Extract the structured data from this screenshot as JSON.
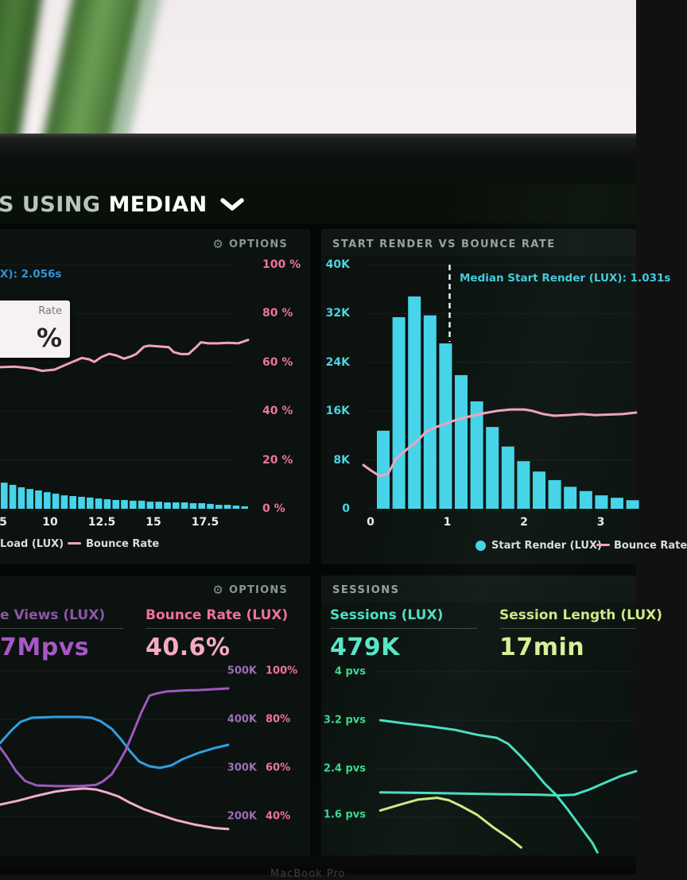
{
  "window": {
    "title_partial": "S USING",
    "title_emphasis": "MEDIAN",
    "bezel_text": "MacBook Pro"
  },
  "colors": {
    "bar_cyan": "#45d4e9",
    "pink_line": "#f2a2bd",
    "pink_axis": "#f0729c",
    "blue_readout": "#2f93d8",
    "cyan_axis": "#4ed2e2",
    "cyan_annotation": "#41cbdd",
    "purple_label": "#8d56a8",
    "purple_value": "#a857c8",
    "purple_axis": "#9c6cb4",
    "pink_metric_label": "#ef6f9f",
    "pink_metric_value": "#f5abc4",
    "teal_label": "#4ce0c0",
    "teal_value": "#57e6c8",
    "yellowgreen_label": "#cdea84",
    "yellowgreen_value": "#d9f097",
    "green_axis": "#3bd88e",
    "blue_line": "#2f9fe6",
    "purple_line": "#9c59bd",
    "pink_soft_line": "#f3aec6",
    "teal_line": "#49dfc0",
    "yellow_line": "#cdeb84",
    "header_gray": "#97a29d",
    "options_gray": "#8b9691",
    "title_gray": "#b9c4bd",
    "white": "#ffffff"
  },
  "panels": {
    "load": {
      "options_label": "OPTIONS",
      "hover_readout_partial": "X): 2.056s",
      "tooltip": {
        "label_partial": "Rate",
        "value_partial": "%"
      },
      "y_axis_labels": [
        "100 %",
        "80 %",
        "60 %",
        "40 %",
        "20 %",
        "0 %"
      ],
      "x_axis_labels": [
        "5",
        "10",
        "12.5",
        "15",
        "17.5"
      ],
      "legend": {
        "bars_label": "Load (LUX)",
        "line_label": "Bounce Rate"
      }
    },
    "start_render": {
      "title": "START RENDER VS BOUNCE RATE",
      "annotation": "Median Start Render (LUX): 1.031s",
      "y_axis_labels": [
        "40K",
        "32K",
        "24K",
        "16K",
        "8K",
        "0"
      ],
      "x_axis_labels": [
        "0",
        "1",
        "2",
        "3"
      ],
      "legend": {
        "bars_label": "Start Render (LUX)",
        "line_label": "Bounce Rate"
      }
    },
    "pageviews": {
      "options_label": "OPTIONS",
      "metric1": {
        "label_partial": "e Views (LUX)",
        "value_partial": "7Mpvs"
      },
      "metric2": {
        "label": "Bounce Rate (LUX)",
        "value": "40.6%"
      },
      "right_axis_rows": [
        {
          "left": "500K",
          "right": "100%"
        },
        {
          "left": "400K",
          "right": "80%"
        },
        {
          "left": "300K",
          "right": "60%"
        },
        {
          "left": "200K",
          "right": "40%"
        }
      ]
    },
    "sessions": {
      "title": "SESSIONS",
      "metric1": {
        "label": "Sessions (LUX)",
        "value": "479K"
      },
      "metric2": {
        "label": "Session Length (LUX)",
        "value": "17min"
      },
      "left_axis_labels": [
        "4 pvs",
        "3.2 pvs",
        "2.4 pvs",
        "1.6 pvs"
      ]
    }
  },
  "chart_data": [
    {
      "id": "load-vs-bounce",
      "type": "bar",
      "title": "",
      "x_ticks": [
        "5",
        "10",
        "12.5",
        "15",
        "17.5"
      ],
      "y_right_ticks_pct": [
        100,
        80,
        60,
        40,
        20,
        0
      ],
      "bars_pct_of_axis": [
        10.7,
        9.8,
        8.8,
        8.1,
        7.5,
        6.8,
        6.2,
        5.5,
        5.2,
        4.9,
        4.6,
        4.2,
        3.9,
        3.6,
        3.6,
        3.3,
        3.3,
        2.9,
        2.9,
        2.6,
        2.6,
        2.6,
        2.3,
        2.3,
        2.0,
        1.6,
        1.6,
        1.3,
        1.0
      ],
      "line_series": {
        "name": "Bounce Rate",
        "points_xnorm_pct": [
          [
            0,
            58
          ],
          [
            0.06,
            58.2
          ],
          [
            0.13,
            57.5
          ],
          [
            0.17,
            56.5
          ],
          [
            0.22,
            57
          ],
          [
            0.26,
            58.8
          ],
          [
            0.3,
            60.5
          ],
          [
            0.33,
            61.8
          ],
          [
            0.36,
            61.2
          ],
          [
            0.38,
            60.2
          ],
          [
            0.41,
            62.2
          ],
          [
            0.44,
            63.5
          ],
          [
            0.47,
            62.8
          ],
          [
            0.5,
            61.5
          ],
          [
            0.53,
            62.5
          ],
          [
            0.55,
            63.5
          ],
          [
            0.58,
            66.4
          ],
          [
            0.6,
            66.8
          ],
          [
            0.64,
            66.5
          ],
          [
            0.68,
            66.2
          ],
          [
            0.7,
            64.2
          ],
          [
            0.73,
            63.4
          ],
          [
            0.76,
            63.4
          ],
          [
            0.79,
            66.2
          ],
          [
            0.81,
            68.2
          ],
          [
            0.84,
            67.8
          ],
          [
            0.88,
            67.8
          ],
          [
            0.92,
            68
          ],
          [
            0.96,
            67.8
          ],
          [
            1,
            69.2
          ]
        ]
      }
    },
    {
      "id": "start-render-vs-bounce",
      "type": "bar",
      "title": "START RENDER VS BOUNCE RATE",
      "x_ticks": [
        0,
        1,
        2,
        3
      ],
      "xlabel_unit": "s",
      "y_ticks": [
        "40K",
        "32K",
        "24K",
        "16K",
        "8K",
        "0"
      ],
      "ylim": [
        0,
        40000
      ],
      "bin_start_s": 0.08,
      "bin_width_s": 0.2,
      "values_k": [
        12.8,
        31.4,
        34.8,
        31.7,
        27.1,
        21.9,
        17.6,
        13.4,
        10.2,
        7.8,
        6.1,
        4.7,
        3.6,
        2.9,
        2.2,
        1.8,
        1.4
      ],
      "median_s": 1.031,
      "median_label": "Median Start Render (LUX): 1.031s",
      "line_series": {
        "name": "Bounce Rate",
        "points_xnorm_pct": [
          [
            0,
            17.9
          ],
          [
            0.03,
            15.5
          ],
          [
            0.06,
            13.4
          ],
          [
            0.09,
            14.3
          ],
          [
            0.12,
            20.5
          ],
          [
            0.16,
            24.4
          ],
          [
            0.2,
            28
          ],
          [
            0.23,
            31.6
          ],
          [
            0.27,
            33.6
          ],
          [
            0.31,
            35.2
          ],
          [
            0.35,
            36.8
          ],
          [
            0.4,
            38.1
          ],
          [
            0.44,
            39.1
          ],
          [
            0.49,
            40.1
          ],
          [
            0.54,
            40.7
          ],
          [
            0.59,
            40.7
          ],
          [
            0.62,
            40.1
          ],
          [
            0.66,
            38.8
          ],
          [
            0.7,
            38.1
          ],
          [
            0.75,
            38.4
          ],
          [
            0.8,
            38.8
          ],
          [
            0.85,
            38.4
          ],
          [
            0.9,
            38.6
          ],
          [
            0.95,
            38.8
          ],
          [
            1,
            39.4
          ]
        ]
      }
    },
    {
      "id": "pageviews-bounce-trend",
      "type": "line",
      "right_axis_rows": [
        [
          "500K",
          "100%"
        ],
        [
          "400K",
          "80%"
        ],
        [
          "300K",
          "60%"
        ],
        [
          "200K",
          "40%"
        ]
      ],
      "series": [
        {
          "name": "blue-series",
          "color_key": "blue_line",
          "points_xnorm_pct": [
            [
              0,
              70.2
            ],
            [
              0.05,
              75.5
            ],
            [
              0.09,
              79
            ],
            [
              0.14,
              80.7
            ],
            [
              0.24,
              81
            ],
            [
              0.35,
              81
            ],
            [
              0.4,
              80.7
            ],
            [
              0.44,
              79.3
            ],
            [
              0.49,
              76.1
            ],
            [
              0.53,
              71.8
            ],
            [
              0.57,
              66.9
            ],
            [
              0.61,
              62.6
            ],
            [
              0.655,
              60.7
            ],
            [
              0.7,
              60
            ],
            [
              0.75,
              61
            ],
            [
              0.8,
              63.6
            ],
            [
              0.87,
              66.2
            ],
            [
              0.94,
              68.2
            ],
            [
              1,
              69.5
            ]
          ]
        },
        {
          "name": "page-views",
          "color_key": "purple_line",
          "points_xnorm_pct": [
            [
              0,
              68.5
            ],
            [
              0.03,
              64.6
            ],
            [
              0.07,
              58.7
            ],
            [
              0.11,
              54.6
            ],
            [
              0.16,
              52.8
            ],
            [
              0.25,
              52.5
            ],
            [
              0.35,
              52.5
            ],
            [
              0.42,
              53
            ],
            [
              0.45,
              54.4
            ],
            [
              0.49,
              57.4
            ],
            [
              0.52,
              62
            ],
            [
              0.55,
              67.2
            ],
            [
              0.585,
              75
            ],
            [
              0.62,
              83
            ],
            [
              0.655,
              89.8
            ],
            [
              0.69,
              90.8
            ],
            [
              0.73,
              91.5
            ],
            [
              0.82,
              92
            ],
            [
              0.87,
              92.1
            ],
            [
              1,
              92.8
            ]
          ]
        },
        {
          "name": "bounce-rate",
          "color_key": "pink_soft_line",
          "points_xnorm_pct": [
            [
              0,
              44.9
            ],
            [
              0.08,
              46.5
            ],
            [
              0.16,
              48.5
            ],
            [
              0.24,
              50.2
            ],
            [
              0.31,
              51.1
            ],
            [
              0.37,
              51.5
            ],
            [
              0.42,
              51.1
            ],
            [
              0.47,
              49.8
            ],
            [
              0.52,
              48.2
            ],
            [
              0.57,
              45.6
            ],
            [
              0.63,
              43
            ],
            [
              0.7,
              40.7
            ],
            [
              0.77,
              38.5
            ],
            [
              0.85,
              36.7
            ],
            [
              0.94,
              35.2
            ],
            [
              1,
              34.8
            ]
          ]
        }
      ]
    },
    {
      "id": "sessions-trend",
      "type": "line",
      "left_ticks_pvs": [
        4,
        3.2,
        2.4,
        1.6
      ],
      "series": [
        {
          "name": "teal-declining",
          "color_key": "teal_line",
          "points_xnorm_pvs": [
            [
              0.01,
              3.2
            ],
            [
              0.1,
              3.15
            ],
            [
              0.2,
              3.1
            ],
            [
              0.3,
              3.04
            ],
            [
              0.385,
              2.96
            ],
            [
              0.46,
              2.91
            ],
            [
              0.505,
              2.81
            ],
            [
              0.55,
              2.62
            ],
            [
              0.6,
              2.39
            ],
            [
              0.645,
              2.16
            ],
            [
              0.69,
              1.97
            ],
            [
              0.735,
              1.73
            ],
            [
              0.785,
              1.44
            ],
            [
              0.83,
              1.18
            ],
            [
              0.85,
              1.02
            ]
          ]
        },
        {
          "name": "teal-flat-rising",
          "color_key": "teal_line",
          "points_xnorm_pvs": [
            [
              0.01,
              2.01
            ],
            [
              0.2,
              2
            ],
            [
              0.45,
              1.98
            ],
            [
              0.63,
              1.97
            ],
            [
              0.7,
              1.96
            ],
            [
              0.76,
              1.97
            ],
            [
              0.815,
              2.05
            ],
            [
              0.875,
              2.16
            ],
            [
              0.94,
              2.28
            ],
            [
              1,
              2.36
            ]
          ]
        },
        {
          "name": "yellow-green",
          "color_key": "yellow_line",
          "points_xnorm_pvs": [
            [
              0.01,
              1.71
            ],
            [
              0.08,
              1.8
            ],
            [
              0.155,
              1.89
            ],
            [
              0.23,
              1.92
            ],
            [
              0.275,
              1.88
            ],
            [
              0.32,
              1.79
            ],
            [
              0.385,
              1.64
            ],
            [
              0.445,
              1.44
            ],
            [
              0.51,
              1.25
            ],
            [
              0.555,
              1.1
            ]
          ]
        }
      ]
    }
  ]
}
